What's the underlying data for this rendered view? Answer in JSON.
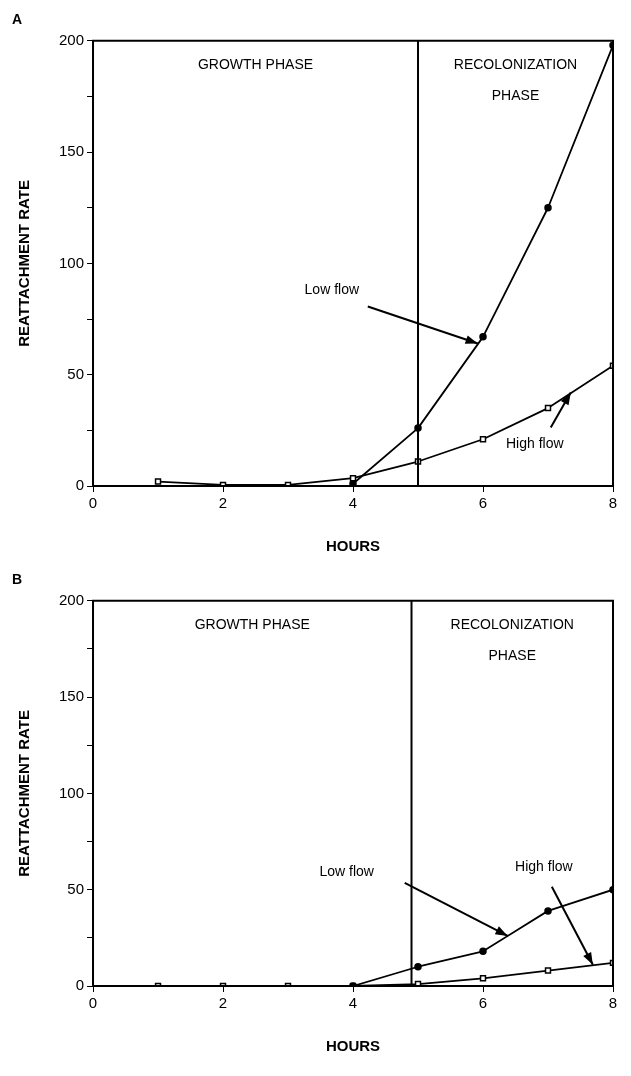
{
  "chart_data": [
    {
      "type": "line",
      "title": "A",
      "xlabel": "HOURS",
      "ylabel": "REATTACHMENT RATE",
      "xlim": [
        0,
        8
      ],
      "xticks": [
        0,
        2,
        4,
        6,
        8
      ],
      "ylim": [
        0,
        200
      ],
      "yticks": [
        0,
        {
          "value": 25,
          "label": null
        },
        50,
        {
          "value": 75,
          "label": null
        },
        100,
        {
          "value": 125,
          "label": null
        },
        150,
        {
          "value": 175,
          "label": null
        },
        200
      ],
      "grid": false,
      "legend": false,
      "line_style": "solid",
      "series": [
        {
          "color": "#000000",
          "marker": "circle",
          "x": [
            4,
            5,
            6,
            7,
            8
          ],
          "values": [
            1,
            26,
            67,
            125,
            198
          ]
        },
        {
          "color": "#000000",
          "marker": "square",
          "x": [
            1,
            2,
            3,
            4,
            5,
            6,
            7,
            8
          ],
          "values": [
            2,
            0.5,
            0.5,
            3.5,
            11,
            21,
            35,
            54
          ]
        }
      ],
      "ref_lines": [
        {
          "axis": "x",
          "value": 5,
          "label": null
        }
      ],
      "annotations": [
        "GROWTH PHASE",
        "RECOLONIZATION PHASE",
        {
          "text": "Low flow",
          "x": 5.92,
          "y": 64
        },
        {
          "text": "High flow",
          "x": 7.35,
          "y": 42
        }
      ]
    },
    {
      "type": "line",
      "title": "B",
      "xlabel": "HOURS",
      "ylabel": "REATTACHMENT RATE",
      "xlim": [
        0,
        8
      ],
      "xticks": [
        0,
        2,
        4,
        6,
        8
      ],
      "ylim": [
        0,
        200
      ],
      "yticks": [
        0,
        {
          "value": 25,
          "label": null
        },
        50,
        {
          "value": 75,
          "label": null
        },
        100,
        {
          "value": 125,
          "label": null
        },
        150,
        {
          "value": 175,
          "label": null
        },
        200
      ],
      "grid": false,
      "legend": false,
      "line_style": "solid",
      "series": [
        {
          "color": "#000000",
          "marker": "circle",
          "x": [
            4,
            5,
            6,
            7,
            8
          ],
          "values": [
            0,
            10,
            18,
            39,
            50
          ]
        },
        {
          "color": "#000000",
          "marker": "square",
          "x": [
            1,
            2,
            3,
            4,
            5,
            6,
            7,
            8
          ],
          "values": [
            0,
            0,
            0,
            0,
            1,
            4,
            8,
            12
          ]
        }
      ],
      "ref_lines": [
        {
          "axis": "x",
          "value": 4.9,
          "label": null
        }
      ],
      "annotations": [
        "GROWTH PHASE",
        "RECOLONIZATION PHASE",
        "Low flow",
        {
          "text": "High flow",
          "x": 7.69,
          "y": 11
        }
      ]
    }
  ]
}
